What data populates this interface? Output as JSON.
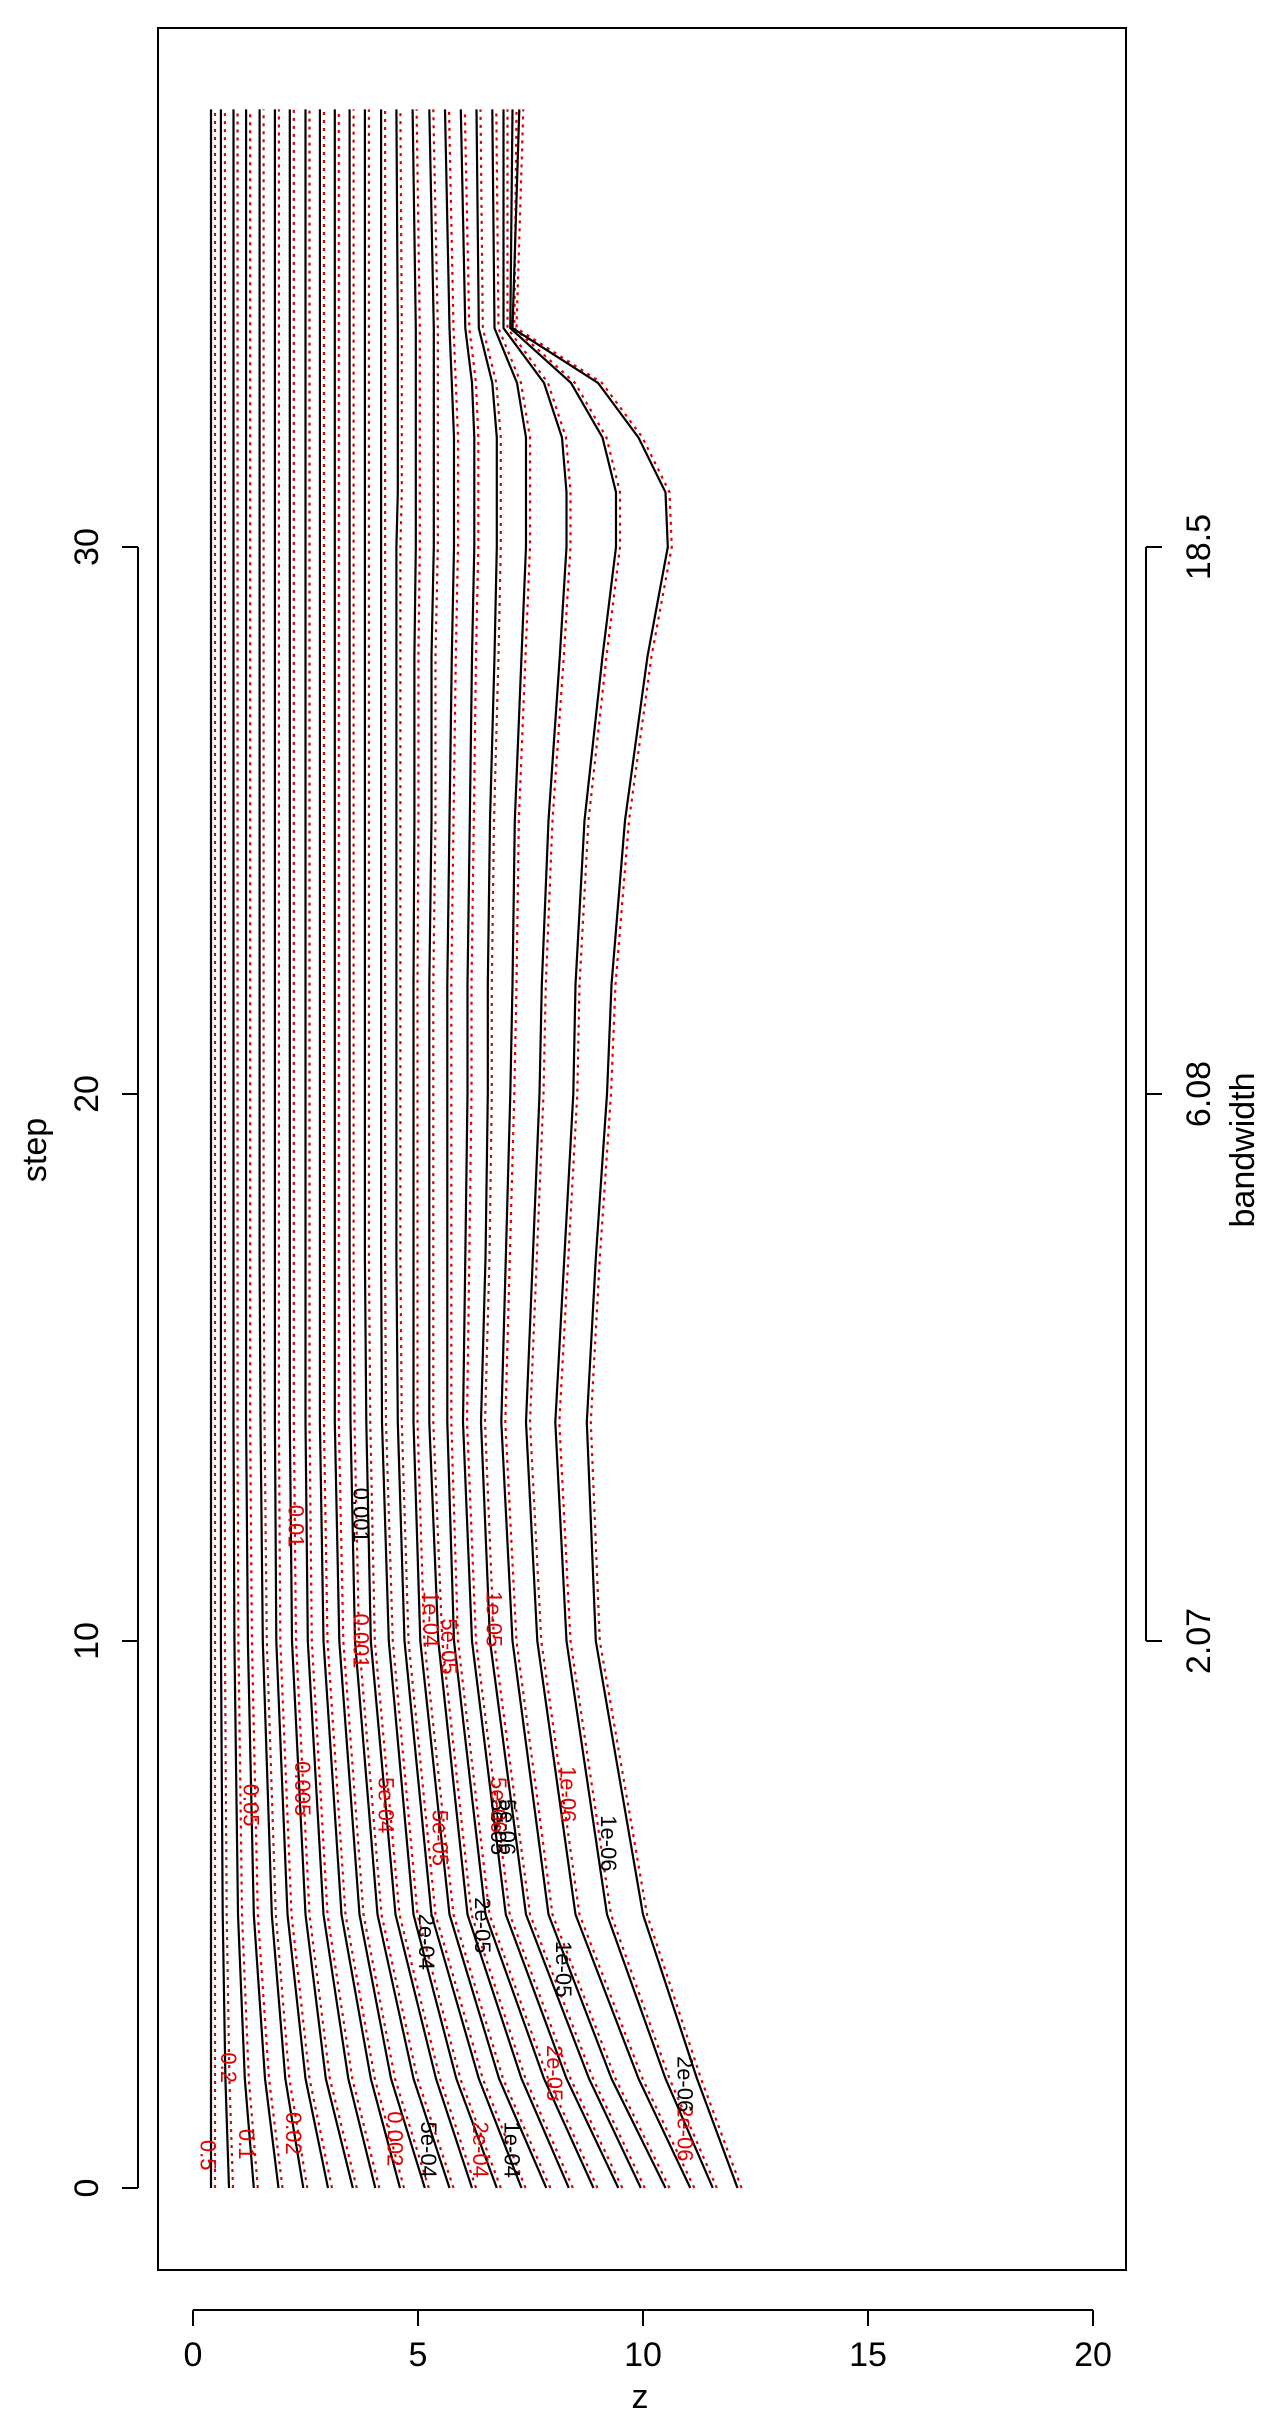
{
  "chart_data": {
    "type": "contour",
    "xlabel": "z",
    "ylabel": "step",
    "y2label": "bandwidth",
    "xlim": [
      -0.8,
      20.8
    ],
    "ylim": [
      -1.5,
      39.5
    ],
    "x_ticks": [
      "0",
      "5",
      "10",
      "15",
      "20"
    ],
    "y_ticks": [
      "0",
      "10",
      "20",
      "30"
    ],
    "y2_ticks": [
      {
        "step": 10,
        "label": "2.07"
      },
      {
        "step": 20,
        "label": "6.08"
      },
      {
        "step": 30,
        "label": "18.5"
      }
    ],
    "colors": {
      "solid": "#000000",
      "dotted": "#e00000"
    },
    "steps": [
      0,
      2,
      5,
      10,
      14,
      17,
      20,
      22,
      25,
      28,
      30,
      31,
      32,
      33,
      34,
      38
    ],
    "series": [
      {
        "x": [
          0.4,
          0.4,
          0.4,
          0.4,
          0.4,
          0.4,
          0.4,
          0.4,
          0.4,
          0.4,
          0.4,
          0.4,
          0.4,
          0.4,
          0.4,
          0.4
        ]
      },
      {
        "x": [
          0.8,
          0.72,
          0.66,
          0.62,
          0.62,
          0.62,
          0.62,
          0.62,
          0.62,
          0.62,
          0.62,
          0.62,
          0.62,
          0.62,
          0.62,
          0.62
        ]
      },
      {
        "x": [
          1.35,
          1.15,
          1.0,
          0.92,
          0.9,
          0.9,
          0.9,
          0.9,
          0.9,
          0.9,
          0.9,
          0.9,
          0.9,
          0.9,
          0.9,
          0.9
        ]
      },
      {
        "x": [
          1.9,
          1.6,
          1.35,
          1.22,
          1.18,
          1.18,
          1.18,
          1.18,
          1.18,
          1.18,
          1.18,
          1.18,
          1.18,
          1.18,
          1.18,
          1.18
        ]
      },
      {
        "x": [
          2.45,
          2.05,
          1.75,
          1.55,
          1.5,
          1.48,
          1.48,
          1.48,
          1.48,
          1.48,
          1.48,
          1.48,
          1.48,
          1.48,
          1.48,
          1.48
        ]
      },
      {
        "x": [
          3.0,
          2.5,
          2.1,
          1.85,
          1.82,
          1.82,
          1.82,
          1.82,
          1.82,
          1.82,
          1.82,
          1.82,
          1.82,
          1.82,
          1.82,
          1.82
        ]
      },
      {
        "x": [
          3.55,
          2.95,
          2.5,
          2.2,
          2.15,
          2.15,
          2.15,
          2.15,
          2.15,
          2.15,
          2.15,
          2.15,
          2.15,
          2.15,
          2.15,
          2.15
        ]
      },
      {
        "x": [
          4.05,
          3.45,
          2.9,
          2.55,
          2.5,
          2.5,
          2.5,
          2.5,
          2.5,
          2.5,
          2.5,
          2.5,
          2.5,
          2.5,
          2.5,
          2.5
        ]
      },
      {
        "x": [
          4.6,
          3.95,
          3.3,
          2.9,
          2.82,
          2.82,
          2.82,
          2.82,
          2.82,
          2.82,
          2.82,
          2.82,
          2.82,
          2.82,
          2.82,
          2.82
        ]
      },
      {
        "x": [
          5.15,
          4.4,
          3.7,
          3.25,
          3.15,
          3.15,
          3.15,
          3.15,
          3.15,
          3.15,
          3.15,
          3.15,
          3.15,
          3.15,
          3.15,
          3.15
        ]
      },
      {
        "x": [
          5.7,
          4.9,
          4.1,
          3.6,
          3.5,
          3.48,
          3.48,
          3.48,
          3.48,
          3.48,
          3.48,
          3.48,
          3.48,
          3.48,
          3.48,
          3.48
        ]
      },
      {
        "x": [
          6.2,
          5.4,
          4.5,
          3.95,
          3.85,
          3.82,
          3.82,
          3.82,
          3.82,
          3.82,
          3.82,
          3.82,
          3.82,
          3.82,
          3.82,
          3.82
        ]
      },
      {
        "x": [
          6.75,
          5.85,
          4.9,
          4.35,
          4.2,
          4.18,
          4.18,
          4.18,
          4.18,
          4.18,
          4.18,
          4.18,
          4.18,
          4.18,
          4.18,
          4.18
        ]
      },
      {
        "x": [
          7.3,
          6.35,
          5.3,
          4.7,
          4.55,
          4.52,
          4.52,
          4.52,
          4.52,
          4.52,
          4.52,
          4.55,
          4.55,
          4.55,
          4.55,
          4.52
        ]
      },
      {
        "x": [
          7.85,
          6.8,
          5.7,
          5.05,
          4.9,
          4.9,
          4.9,
          4.9,
          4.92,
          4.92,
          4.95,
          4.95,
          4.95,
          4.95,
          4.95,
          4.88
        ]
      },
      {
        "x": [
          8.35,
          7.3,
          6.1,
          5.45,
          5.25,
          5.25,
          5.25,
          5.25,
          5.3,
          5.3,
          5.35,
          5.35,
          5.35,
          5.35,
          5.35,
          5.25
        ]
      },
      {
        "x": [
          8.9,
          7.8,
          6.5,
          5.8,
          5.65,
          5.65,
          5.65,
          5.65,
          5.7,
          5.75,
          5.8,
          5.8,
          5.8,
          5.75,
          5.7,
          5.6
        ]
      },
      {
        "x": [
          9.45,
          8.3,
          6.95,
          6.2,
          6.0,
          6.05,
          6.1,
          6.1,
          6.15,
          6.2,
          6.25,
          6.25,
          6.25,
          6.2,
          6.05,
          5.95
        ]
      },
      {
        "x": [
          9.95,
          8.8,
          7.4,
          6.6,
          6.4,
          6.5,
          6.55,
          6.55,
          6.6,
          6.7,
          6.75,
          6.75,
          6.75,
          6.65,
          6.35,
          6.3
        ]
      },
      {
        "x": [
          10.5,
          9.3,
          7.9,
          7.1,
          6.85,
          6.95,
          7.05,
          7.1,
          7.15,
          7.3,
          7.4,
          7.4,
          7.4,
          7.2,
          6.7,
          6.65
        ]
      },
      {
        "x": [
          11.05,
          9.9,
          8.5,
          7.65,
          7.4,
          7.55,
          7.7,
          7.75,
          7.9,
          8.15,
          8.3,
          8.3,
          8.2,
          7.8,
          6.9,
          6.9
        ]
      },
      {
        "x": [
          11.55,
          10.5,
          9.2,
          8.3,
          8.05,
          8.25,
          8.45,
          8.5,
          8.7,
          9.1,
          9.4,
          9.4,
          9.1,
          8.4,
          7.05,
          7.1
        ]
      },
      {
        "x": [
          12.1,
          11.2,
          10.0,
          8.95,
          8.75,
          8.95,
          9.2,
          9.3,
          9.6,
          10.1,
          10.55,
          10.5,
          9.9,
          9.0,
          7.1,
          7.25
        ]
      }
    ],
    "label_styles": [
      {
        "text": "0.5",
        "color": "red"
      },
      {
        "text": "0.2",
        "color": "red"
      },
      {
        "text": "0.1",
        "color": "red"
      },
      {
        "text": "0.05",
        "color": "red"
      },
      {
        "text": "0.02",
        "color": "red"
      },
      {
        "text": "0.01",
        "color": "red"
      },
      {
        "text": "0.005",
        "color": "red"
      },
      {
        "text": "0.002",
        "color": "red"
      },
      {
        "text": "0.001",
        "color": "red"
      },
      {
        "text": "0.001",
        "color": "black"
      },
      {
        "text": "5e-04",
        "color": "red"
      },
      {
        "text": "5e-04",
        "color": "black"
      },
      {
        "text": "2e-04",
        "color": "black"
      },
      {
        "text": "2e-04",
        "color": "red"
      },
      {
        "text": "1e-04",
        "color": "red"
      },
      {
        "text": "1e-04",
        "color": "black"
      },
      {
        "text": "5e-05",
        "color": "red"
      },
      {
        "text": "5e-05",
        "color": "red"
      },
      {
        "text": "5e-05",
        "color": "black"
      },
      {
        "text": "2e-05",
        "color": "black"
      },
      {
        "text": "2e-05",
        "color": "red"
      },
      {
        "text": "1e-05",
        "color": "red"
      },
      {
        "text": "1e-05",
        "color": "black"
      },
      {
        "text": "5e-06",
        "color": "red"
      },
      {
        "text": "5e-06",
        "color": "black"
      },
      {
        "text": "2e-06",
        "color": "red"
      },
      {
        "text": "2e-06",
        "color": "black"
      },
      {
        "text": "1e-06",
        "color": "red"
      },
      {
        "text": "1e-06",
        "color": "black"
      }
    ]
  }
}
